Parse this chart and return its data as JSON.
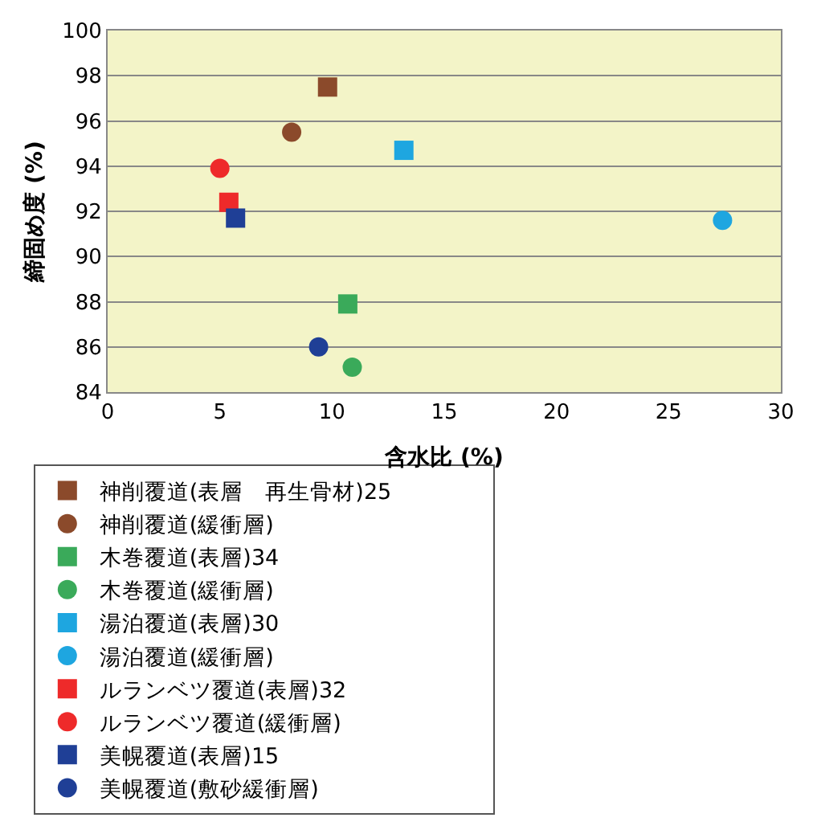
{
  "chart_data": {
    "type": "scatter",
    "xlabel": "含水比 (%)",
    "ylabel": "締固め度 (%)",
    "xlim": [
      0,
      30
    ],
    "xticks": [
      0,
      5,
      10,
      15,
      20,
      25,
      30
    ],
    "ylim": [
      84,
      100
    ],
    "yticks": [
      84,
      86,
      88,
      90,
      92,
      94,
      96,
      98,
      100
    ],
    "grid": "y",
    "legend": "bottom",
    "series": [
      {
        "name": "神削覆道(表層　再生骨材)25",
        "color": "#8b4a2b",
        "marker": "square",
        "x": [
          9.8
        ],
        "values": [
          97.5
        ]
      },
      {
        "name": "神削覆道(緩衝層)",
        "color": "#8b4a2b",
        "marker": "circle",
        "x": [
          8.2
        ],
        "values": [
          95.5
        ]
      },
      {
        "name": "木巻覆道(表層)34",
        "color": "#3aaa5a",
        "marker": "square",
        "x": [
          10.7
        ],
        "values": [
          87.9
        ]
      },
      {
        "name": "木巻覆道(緩衝層)",
        "color": "#3aaa5a",
        "marker": "circle",
        "x": [
          10.9
        ],
        "values": [
          85.1
        ]
      },
      {
        "name": "湯泊覆道(表層)30",
        "color": "#1ea6e0",
        "marker": "square",
        "x": [
          13.2
        ],
        "values": [
          94.7
        ]
      },
      {
        "name": "湯泊覆道(緩衝層)",
        "color": "#1ea6e0",
        "marker": "circle",
        "x": [
          27.4
        ],
        "values": [
          91.6
        ]
      },
      {
        "name": "ルランベツ覆道(表層)32",
        "color": "#ee2a2a",
        "marker": "square",
        "x": [
          5.4
        ],
        "values": [
          92.4
        ]
      },
      {
        "name": "ルランベツ覆道(緩衝層)",
        "color": "#ee2a2a",
        "marker": "circle",
        "x": [
          5.0
        ],
        "values": [
          93.9
        ]
      },
      {
        "name": "美幌覆道(表層)15",
        "color": "#1f3f96",
        "marker": "square",
        "x": [
          5.7
        ],
        "values": [
          91.7
        ]
      },
      {
        "name": "美幌覆道(敷砂緩衝層)",
        "color": "#1f3f96",
        "marker": "circle",
        "x": [
          9.4
        ],
        "values": [
          86.0
        ]
      }
    ]
  }
}
